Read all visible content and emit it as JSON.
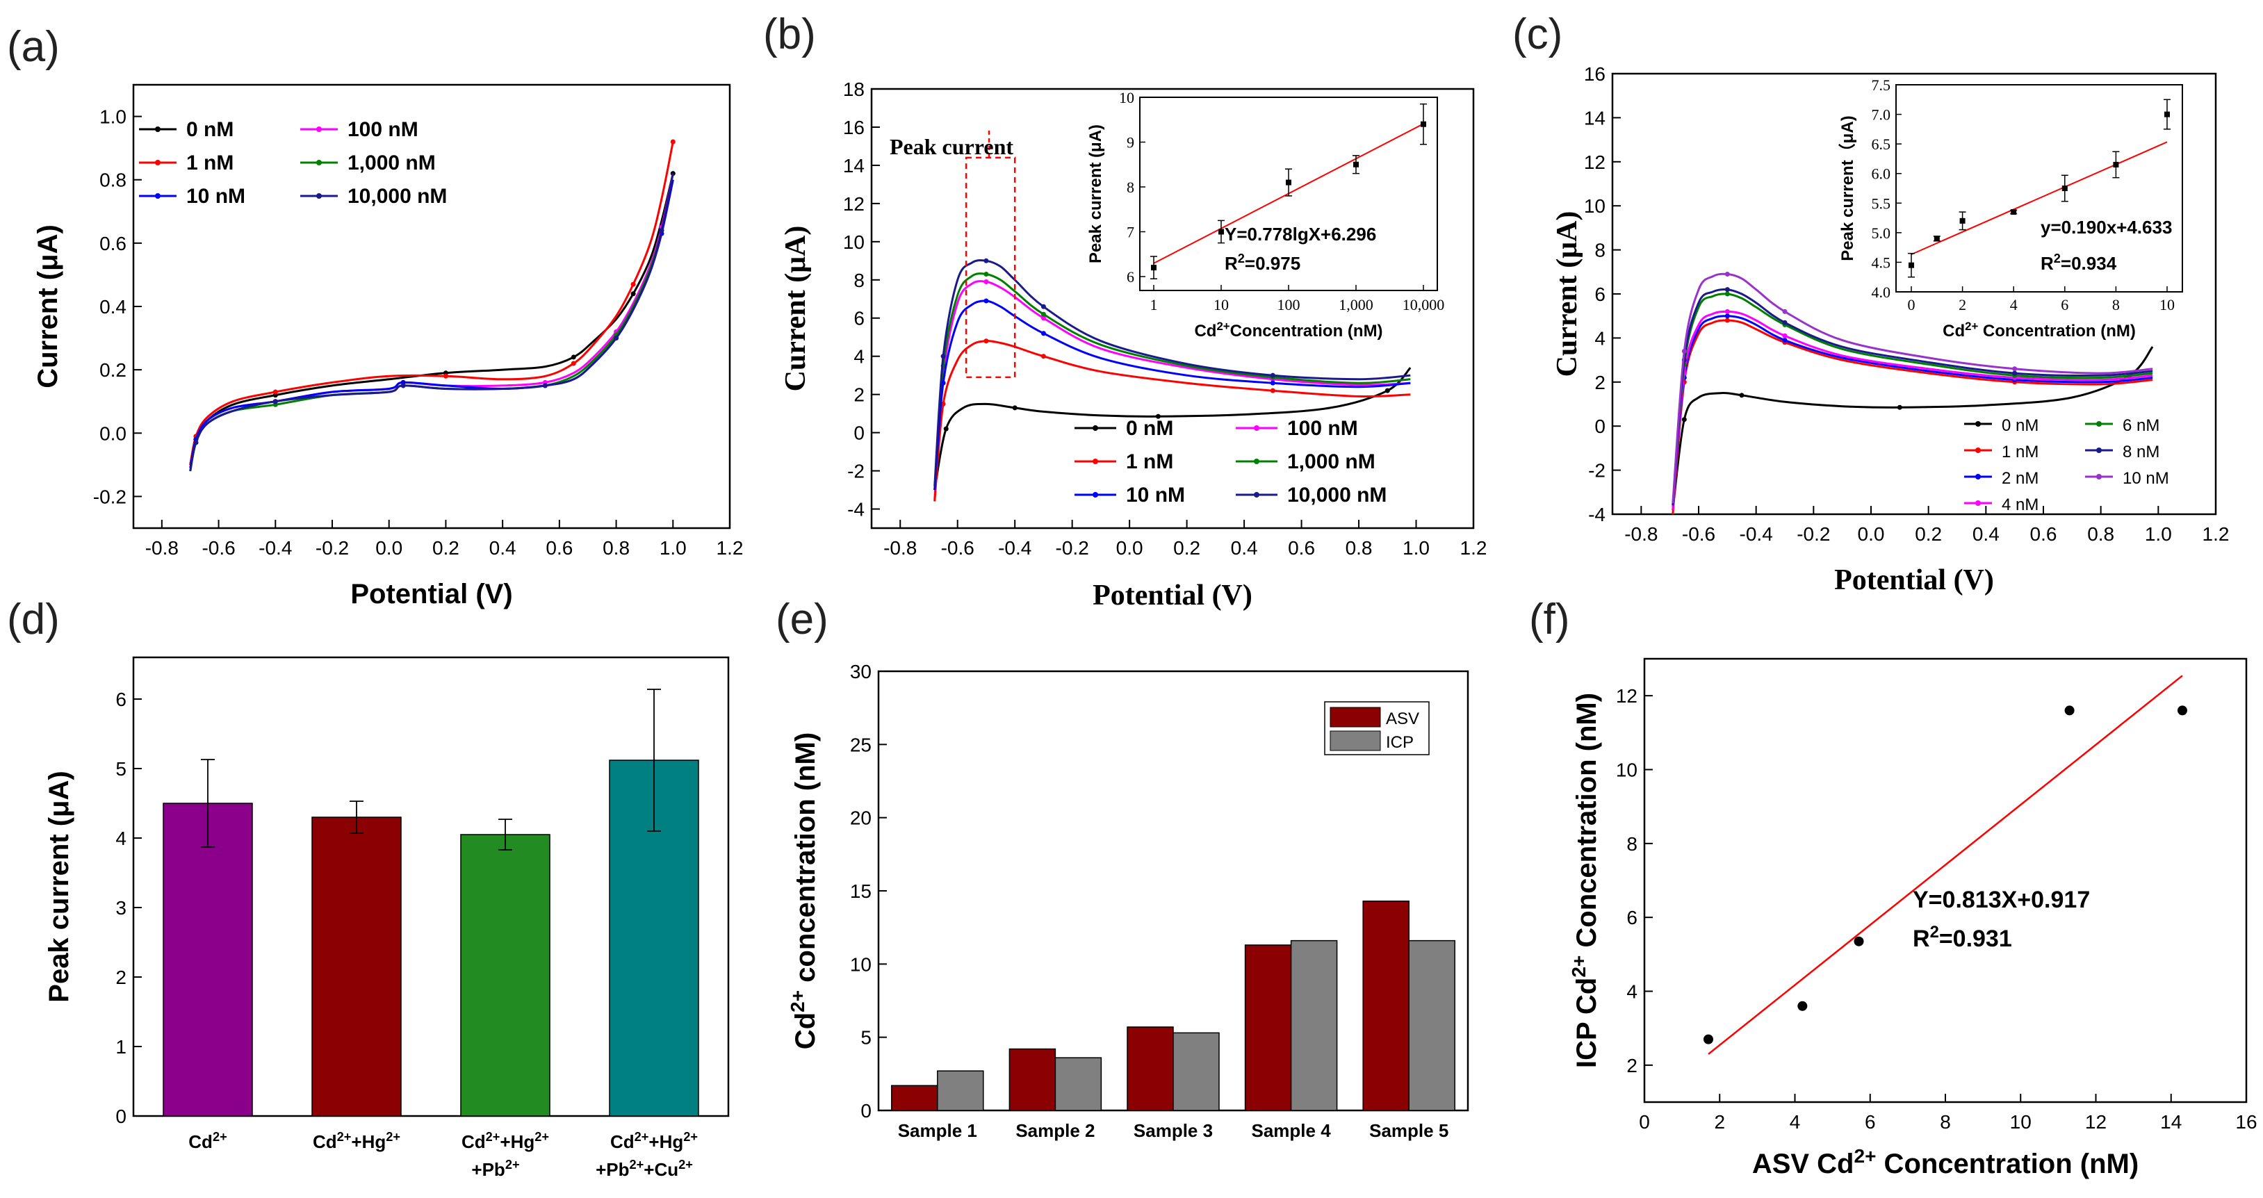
{
  "chart_data": [
    {
      "panel": "(a)",
      "type": "line",
      "xlabel": "Potential (V)",
      "ylabel": "Current (μA)",
      "xlim": [
        -0.9,
        1.2
      ],
      "ylim": [
        -0.3,
        1.1
      ],
      "xticks": [
        "-0.8",
        "-0.6",
        "-0.4",
        "-0.2",
        "0.0",
        "0.2",
        "0.4",
        "0.6",
        "0.8",
        "1.0",
        "1.2"
      ],
      "yticks": [
        "-0.2",
        "0.0",
        "0.2",
        "0.4",
        "0.6",
        "0.8",
        "1.0"
      ],
      "series": [
        {
          "name": "0 nM",
          "color": "#000000",
          "x": [
            -0.7,
            -0.68,
            -0.64,
            -0.55,
            -0.4,
            -0.2,
            0.0,
            0.2,
            0.4,
            0.55,
            0.65,
            0.72,
            0.8,
            0.86,
            0.92,
            0.96,
            1.0
          ],
          "y": [
            -0.1,
            -0.02,
            0.04,
            0.09,
            0.12,
            0.15,
            0.17,
            0.19,
            0.2,
            0.21,
            0.24,
            0.29,
            0.36,
            0.44,
            0.55,
            0.67,
            0.82
          ]
        },
        {
          "name": "100 nM",
          "color": "#ff00ff",
          "x": [
            -0.7,
            -0.68,
            -0.64,
            -0.55,
            -0.4,
            -0.2,
            0.0,
            0.05,
            0.2,
            0.4,
            0.55,
            0.65,
            0.72,
            0.8,
            0.86,
            0.92,
            0.96,
            1.0
          ],
          "y": [
            -0.1,
            -0.02,
            0.04,
            0.08,
            0.1,
            0.13,
            0.14,
            0.16,
            0.15,
            0.15,
            0.16,
            0.19,
            0.24,
            0.32,
            0.41,
            0.53,
            0.65,
            0.82
          ]
        },
        {
          "name": "1 nM",
          "color": "#ff0000",
          "x": [
            -0.7,
            -0.68,
            -0.64,
            -0.55,
            -0.4,
            -0.2,
            0.0,
            0.2,
            0.4,
            0.55,
            0.65,
            0.72,
            0.8,
            0.86,
            0.92,
            0.96,
            1.0
          ],
          "y": [
            -0.1,
            -0.01,
            0.05,
            0.1,
            0.13,
            0.16,
            0.18,
            0.18,
            0.17,
            0.18,
            0.22,
            0.28,
            0.37,
            0.47,
            0.6,
            0.74,
            0.92
          ]
        },
        {
          "name": "1,000 nM",
          "color": "#008000",
          "x": [
            -0.7,
            -0.68,
            -0.64,
            -0.55,
            -0.4,
            -0.2,
            0.0,
            0.05,
            0.2,
            0.4,
            0.55,
            0.65,
            0.72,
            0.8,
            0.86,
            0.92,
            0.96,
            1.0
          ],
          "y": [
            -0.12,
            -0.03,
            0.03,
            0.07,
            0.09,
            0.12,
            0.13,
            0.15,
            0.14,
            0.14,
            0.15,
            0.18,
            0.23,
            0.31,
            0.4,
            0.52,
            0.64,
            0.8
          ]
        },
        {
          "name": "10 nM",
          "color": "#0000ff",
          "x": [
            -0.7,
            -0.68,
            -0.64,
            -0.55,
            -0.4,
            -0.2,
            0.0,
            0.05,
            0.2,
            0.4,
            0.55,
            0.65,
            0.72,
            0.8,
            0.86,
            0.92,
            0.96,
            1.0
          ],
          "y": [
            -0.11,
            -0.02,
            0.04,
            0.08,
            0.1,
            0.13,
            0.14,
            0.16,
            0.15,
            0.14,
            0.15,
            0.17,
            0.22,
            0.3,
            0.39,
            0.51,
            0.63,
            0.8
          ]
        },
        {
          "name": "10,000 nM",
          "color": "#1a1a8c",
          "x": [
            -0.7,
            -0.68,
            -0.64,
            -0.55,
            -0.4,
            -0.2,
            0.0,
            0.05,
            0.2,
            0.4,
            0.55,
            0.65,
            0.72,
            0.8,
            0.86,
            0.92,
            0.96,
            1.0
          ],
          "y": [
            -0.12,
            -0.03,
            0.03,
            0.07,
            0.1,
            0.12,
            0.13,
            0.15,
            0.14,
            0.14,
            0.15,
            0.17,
            0.22,
            0.3,
            0.39,
            0.51,
            0.64,
            0.82
          ]
        }
      ]
    },
    {
      "panel": "(b)",
      "type": "line",
      "xlabel": "Potential (V)",
      "ylabel": "Current (μA)",
      "xlim": [
        -0.9,
        1.2
      ],
      "ylim": [
        -5,
        18
      ],
      "xticks": [
        "-0.8",
        "-0.6",
        "-0.4",
        "-0.2",
        "0.0",
        "0.2",
        "0.4",
        "0.6",
        "0.8",
        "1.0",
        "1.2"
      ],
      "yticks": [
        "-4",
        "-2",
        "0",
        "2",
        "4",
        "6",
        "8",
        "10",
        "12",
        "14",
        "16",
        "18"
      ],
      "annotation": "Peak current",
      "series": [
        {
          "name": "0 nM",
          "color": "#000000",
          "x": [
            -0.68,
            -0.64,
            -0.58,
            -0.5,
            -0.4,
            -0.3,
            -0.1,
            0.1,
            0.4,
            0.7,
            0.9,
            0.98
          ],
          "y": [
            -3,
            0.2,
            1.3,
            1.5,
            1.3,
            1.1,
            0.9,
            0.85,
            0.95,
            1.3,
            2.2,
            3.4
          ]
        },
        {
          "name": "100 nM",
          "color": "#ff00ff",
          "x": [
            -0.68,
            -0.65,
            -0.6,
            -0.55,
            -0.5,
            -0.45,
            -0.4,
            -0.3,
            -0.1,
            0.2,
            0.5,
            0.8,
            0.98
          ],
          "y": [
            -3.5,
            3,
            6.8,
            7.8,
            7.9,
            7.6,
            7.1,
            6,
            4.4,
            3.4,
            2.8,
            2.5,
            2.6
          ]
        },
        {
          "name": "1 nM",
          "color": "#ff0000",
          "x": [
            -0.68,
            -0.65,
            -0.6,
            -0.55,
            -0.5,
            -0.45,
            -0.4,
            -0.3,
            -0.1,
            0.2,
            0.5,
            0.8,
            0.98
          ],
          "y": [
            -3.6,
            1.5,
            3.8,
            4.6,
            4.8,
            4.7,
            4.5,
            4,
            3.2,
            2.6,
            2.2,
            1.9,
            2
          ]
        },
        {
          "name": "1,000 nM",
          "color": "#008000",
          "x": [
            -0.68,
            -0.65,
            -0.6,
            -0.55,
            -0.5,
            -0.45,
            -0.4,
            -0.3,
            -0.1,
            0.2,
            0.5,
            0.8,
            0.98
          ],
          "y": [
            -3,
            3.5,
            7.2,
            8.2,
            8.3,
            8,
            7.4,
            6.2,
            4.6,
            3.5,
            2.9,
            2.6,
            2.8
          ]
        },
        {
          "name": "10 nM",
          "color": "#0000ff",
          "x": [
            -0.68,
            -0.65,
            -0.6,
            -0.55,
            -0.5,
            -0.45,
            -0.4,
            -0.3,
            -0.1,
            0.2,
            0.5,
            0.8,
            0.98
          ],
          "y": [
            -3,
            2.6,
            5.8,
            6.7,
            6.9,
            6.6,
            6.1,
            5.2,
            3.9,
            3,
            2.6,
            2.4,
            2.6
          ]
        },
        {
          "name": "10,000 nM",
          "color": "#1a1a8c",
          "x": [
            -0.68,
            -0.65,
            -0.6,
            -0.55,
            -0.5,
            -0.45,
            -0.4,
            -0.3,
            -0.1,
            0.2,
            0.5,
            0.8,
            0.98
          ],
          "y": [
            -2.8,
            4,
            8,
            8.9,
            9,
            8.7,
            8,
            6.6,
            4.8,
            3.6,
            3,
            2.8,
            3
          ]
        }
      ],
      "inset": {
        "type": "scatter",
        "xlabel": "Cd²⁺Concentration (nM)",
        "ylabel": "Peak current (μA)",
        "xscale": "log",
        "xticks": [
          "1",
          "10",
          "100",
          "1,000",
          "10,000"
        ],
        "yticks": [
          "6",
          "7",
          "8",
          "9",
          "10"
        ],
        "x": [
          1,
          10,
          100,
          1000,
          10000
        ],
        "y": [
          6.2,
          7.0,
          8.1,
          8.5,
          9.4
        ],
        "err": [
          0.25,
          0.25,
          0.3,
          0.2,
          0.45
        ],
        "fit": {
          "intercept": 6.296,
          "slope": 0.778
        },
        "equation": "Y=0.778lgX+6.296",
        "r2_label": "R²=0.975"
      }
    },
    {
      "panel": "(c)",
      "type": "line",
      "xlabel": "Potential (V)",
      "ylabel": "Current (μA)",
      "xlim": [
        -0.9,
        1.2
      ],
      "ylim": [
        -4,
        16
      ],
      "xticks": [
        "-0.8",
        "-0.6",
        "-0.4",
        "-0.2",
        "0.0",
        "0.2",
        "0.4",
        "0.6",
        "0.8",
        "1.0",
        "1.2"
      ],
      "yticks": [
        "-4",
        "-2",
        "0",
        "2",
        "4",
        "6",
        "8",
        "10",
        "12",
        "14",
        "16"
      ],
      "series": [
        {
          "name": "0 nM",
          "color": "#000000",
          "x": [
            -0.69,
            -0.65,
            -0.6,
            -0.52,
            -0.45,
            -0.3,
            -0.1,
            0.1,
            0.4,
            0.7,
            0.9,
            0.98
          ],
          "y": [
            -3.8,
            0.3,
            1.3,
            1.5,
            1.4,
            1.1,
            0.9,
            0.85,
            0.95,
            1.3,
            2.3,
            3.6
          ]
        },
        {
          "name": "1 nM",
          "color": "#ff0000",
          "x": [
            -0.69,
            -0.65,
            -0.6,
            -0.55,
            -0.5,
            -0.45,
            -0.4,
            -0.3,
            -0.1,
            0.2,
            0.5,
            0.8,
            0.98
          ],
          "y": [
            -4,
            2,
            4.2,
            4.7,
            4.8,
            4.7,
            4.4,
            3.8,
            3,
            2.4,
            2,
            1.9,
            2.1
          ]
        },
        {
          "name": "2 nM",
          "color": "#0000ff",
          "x": [
            -0.69,
            -0.65,
            -0.6,
            -0.55,
            -0.5,
            -0.45,
            -0.4,
            -0.3,
            -0.1,
            0.2,
            0.5,
            0.8,
            0.98
          ],
          "y": [
            -3.8,
            2.2,
            4.4,
            4.9,
            5,
            4.9,
            4.6,
            3.9,
            3.1,
            2.5,
            2.1,
            2,
            2.2
          ]
        },
        {
          "name": "4 nM",
          "color": "#ff00ff",
          "x": [
            -0.69,
            -0.65,
            -0.6,
            -0.55,
            -0.5,
            -0.45,
            -0.4,
            -0.3,
            -0.1,
            0.2,
            0.5,
            0.8,
            0.98
          ],
          "y": [
            -3.8,
            2.4,
            4.6,
            5.1,
            5.2,
            5.1,
            4.8,
            4.1,
            3.2,
            2.6,
            2.2,
            2.1,
            2.3
          ]
        },
        {
          "name": "6 nM",
          "color": "#008000",
          "x": [
            -0.69,
            -0.65,
            -0.6,
            -0.55,
            -0.5,
            -0.45,
            -0.4,
            -0.3,
            -0.1,
            0.2,
            0.5,
            0.8,
            0.98
          ],
          "y": [
            -3.6,
            2.8,
            5.4,
            5.9,
            6,
            5.8,
            5.4,
            4.6,
            3.5,
            2.8,
            2.3,
            2.2,
            2.4
          ]
        },
        {
          "name": "8 nM",
          "color": "#1a1a8c",
          "x": [
            -0.69,
            -0.65,
            -0.6,
            -0.55,
            -0.5,
            -0.45,
            -0.4,
            -0.3,
            -0.1,
            0.2,
            0.5,
            0.8,
            0.98
          ],
          "y": [
            -3.6,
            3,
            5.6,
            6.1,
            6.2,
            6,
            5.6,
            4.7,
            3.6,
            2.9,
            2.4,
            2.3,
            2.5
          ]
        },
        {
          "name": "10 nM",
          "color": "#9932cc",
          "x": [
            -0.69,
            -0.65,
            -0.6,
            -0.55,
            -0.5,
            -0.45,
            -0.4,
            -0.3,
            -0.1,
            0.2,
            0.5,
            0.8,
            0.98
          ],
          "y": [
            -3.5,
            3.4,
            6.2,
            6.8,
            6.9,
            6.7,
            6.2,
            5.2,
            3.9,
            3.1,
            2.6,
            2.4,
            2.6
          ]
        }
      ],
      "inset": {
        "type": "scatter",
        "xlabel": "Cd²⁺ Concentration (nM)",
        "ylabel": "Peak current（μA)",
        "xlim": [
          0,
          10
        ],
        "ylim": [
          4.0,
          7.5
        ],
        "xticks": [
          "0",
          "2",
          "4",
          "6",
          "8",
          "10"
        ],
        "yticks": [
          "4.0",
          "4.5",
          "5.0",
          "5.5",
          "6.0",
          "6.5",
          "7.0",
          "7.5"
        ],
        "x": [
          0,
          1,
          2,
          4,
          6,
          8,
          10
        ],
        "y": [
          4.45,
          4.9,
          5.2,
          5.35,
          5.75,
          6.15,
          7.0
        ],
        "err": [
          0.2,
          0.04,
          0.15,
          0.03,
          0.22,
          0.22,
          0.25
        ],
        "fit": {
          "intercept": 4.633,
          "slope": 0.19
        },
        "equation": "y=0.190x+4.633",
        "r2_label": "R²=0.934"
      }
    },
    {
      "panel": "(d)",
      "type": "bar",
      "ylabel": "Peak current (μA)",
      "ylim": [
        0,
        6.6
      ],
      "yticks": [
        "0",
        "1",
        "2",
        "3",
        "4",
        "5",
        "6"
      ],
      "categories": [
        [
          "Cd²⁺"
        ],
        [
          "Cd²⁺+Hg²⁺"
        ],
        [
          "Cd²⁺+Hg²⁺",
          "+Pb²⁺"
        ],
        [
          "Cd²⁺+Hg²⁺",
          "+Pb²⁺+Cu²⁺"
        ]
      ],
      "values": [
        4.5,
        4.3,
        4.05,
        5.12
      ],
      "errors": [
        0.63,
        0.23,
        0.22,
        1.02
      ],
      "colors": [
        "#8b008b",
        "#8b0000",
        "#228b22",
        "#008080"
      ]
    },
    {
      "panel": "(e)",
      "type": "bar",
      "ylabel": "Cd²⁺ concentration (nM)",
      "ylim": [
        0,
        30
      ],
      "yticks": [
        "0",
        "5",
        "10",
        "15",
        "20",
        "25",
        "30"
      ],
      "categories": [
        "Sample 1",
        "Sample 2",
        "Sample 3",
        "Sample 4",
        "Sample 5"
      ],
      "series": [
        {
          "name": "ASV",
          "color": "#8b0000",
          "values": [
            1.7,
            4.2,
            5.7,
            11.3,
            14.3
          ]
        },
        {
          "name": "ICP",
          "color": "#808080",
          "values": [
            2.7,
            3.6,
            5.3,
            11.6,
            11.6
          ]
        }
      ]
    },
    {
      "panel": "(f)",
      "type": "scatter",
      "xlabel": "ASV Cd²⁺ Concentration (nM)",
      "ylabel": "ICP Cd²⁺ Concentration (nM)",
      "xlim": [
        0,
        16
      ],
      "ylim": [
        1,
        13
      ],
      "xticks": [
        "0",
        "2",
        "4",
        "6",
        "8",
        "10",
        "12",
        "14",
        "16"
      ],
      "yticks": [
        "2",
        "4",
        "6",
        "8",
        "10",
        "12"
      ],
      "x": [
        1.7,
        4.2,
        5.7,
        11.3,
        14.3
      ],
      "y": [
        2.7,
        3.6,
        5.35,
        11.6,
        11.6
      ],
      "fit": {
        "intercept": 0.917,
        "slope": 0.813,
        "x_range": [
          1.7,
          14.3
        ]
      },
      "equation": "Y=0.813X+0.917",
      "r2_label": "R²=0.931"
    }
  ]
}
